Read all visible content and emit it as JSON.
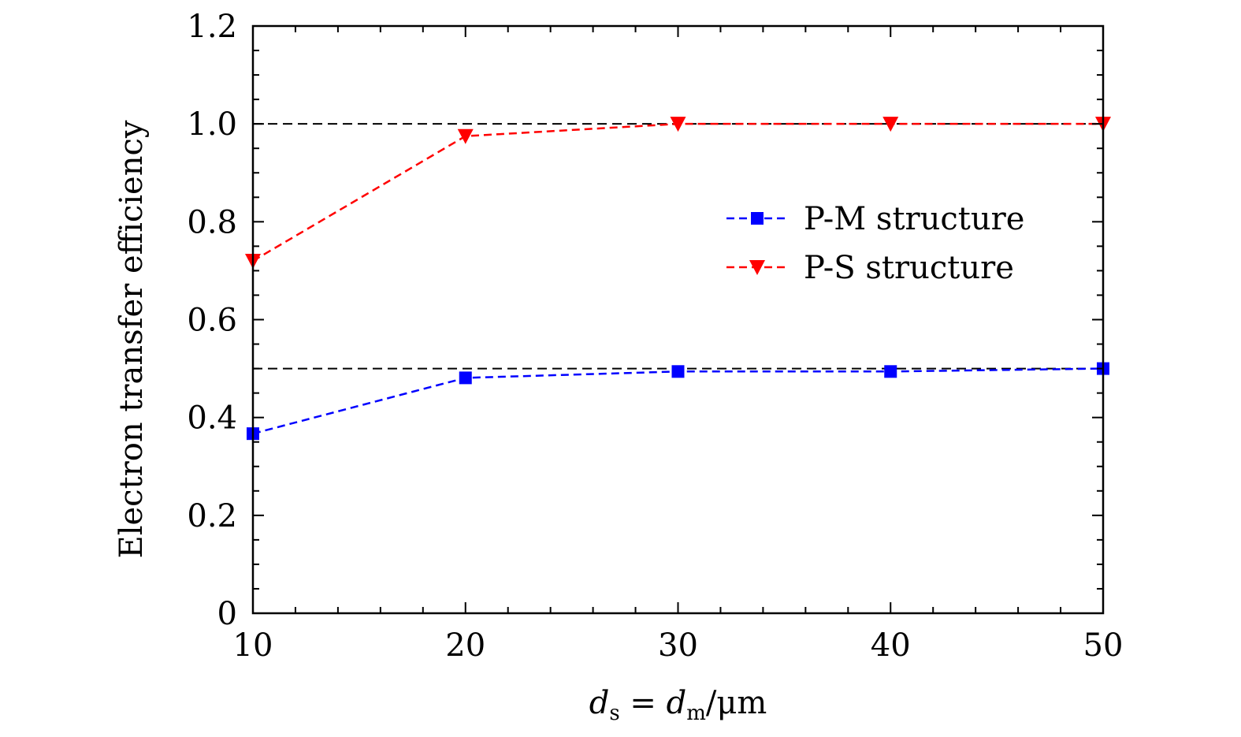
{
  "chart_data": {
    "type": "line",
    "title": "",
    "xlabel": {
      "var": "d",
      "sub1": "s",
      "eq": " = ",
      "var2": "d",
      "sub2": "m",
      "unit": "/μm"
    },
    "ylabel": "Electron transfer efficiency",
    "x": [
      10,
      20,
      30,
      40,
      50
    ],
    "xlim": [
      10,
      50
    ],
    "ylim": [
      0,
      1.2
    ],
    "xticks": [
      10,
      20,
      30,
      40,
      50
    ],
    "xtick_labels": [
      "10",
      "20",
      "30",
      "40",
      "50"
    ],
    "yticks": [
      0,
      0.2,
      0.4,
      0.6,
      0.8,
      1.0,
      1.2
    ],
    "ytick_labels": [
      "0",
      "0.2",
      "0.4",
      "0.6",
      "0.8",
      "1.0",
      "1.2"
    ],
    "grid": false,
    "legend_position": "right-middle",
    "series": [
      {
        "name": "P-M structure",
        "values": [
          0.367,
          0.481,
          0.494,
          0.494,
          0.5
        ],
        "color": "#0000ff",
        "marker": "square",
        "line": "dashed"
      },
      {
        "name": "P-S structure",
        "values": [
          0.72,
          0.975,
          1.0,
          1.0,
          1.0
        ],
        "color": "#ff0000",
        "marker": "triangle-down",
        "line": "dashed"
      }
    ],
    "reference_lines": [
      {
        "y": 1.0,
        "color": "#000000",
        "line": "dashed"
      },
      {
        "y": 0.5,
        "color": "#000000",
        "line": "dashed"
      }
    ]
  }
}
